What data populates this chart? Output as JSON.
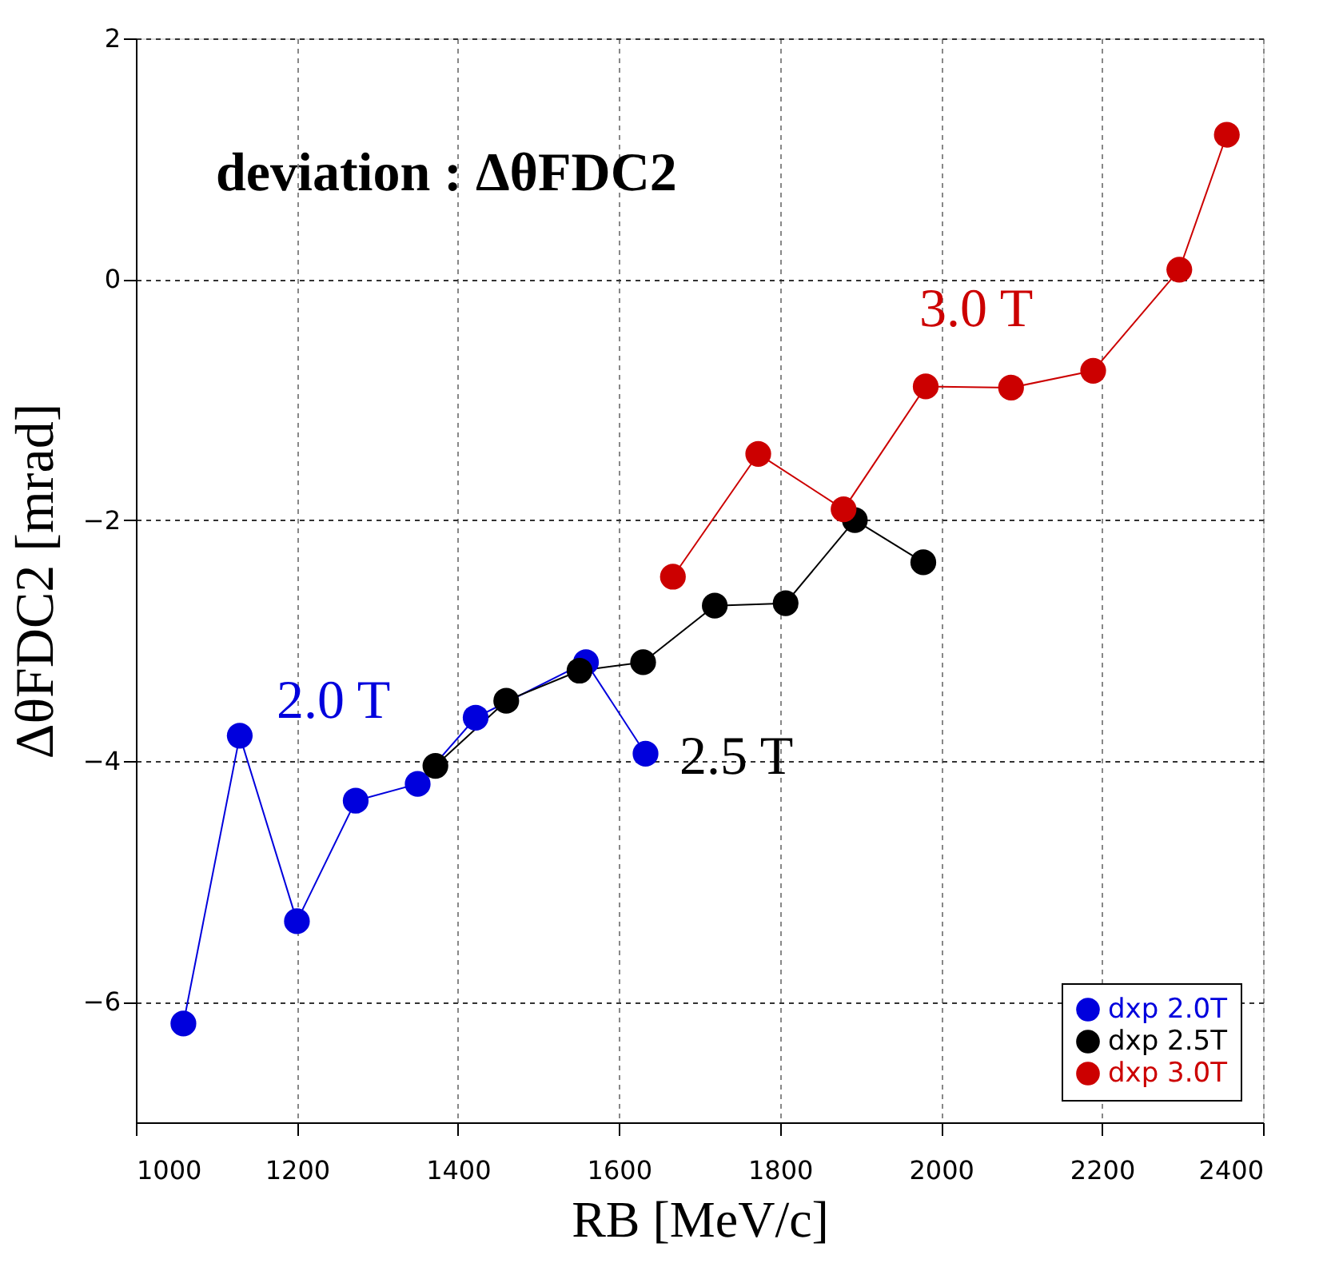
{
  "chart_data": {
    "type": "line",
    "title": "deviation : ΔθFDC2",
    "xlabel": "RB [MeV/c]",
    "ylabel": "ΔθFDC2 [mrad]",
    "xlim": [
      1000,
      2400
    ],
    "xticks": [
      1000,
      1200,
      1400,
      1600,
      1800,
      2000,
      2200,
      2400
    ],
    "ylim": [
      -7,
      2
    ],
    "yticks": [
      -6,
      -4,
      -2,
      0,
      2
    ],
    "grid": true,
    "marker": "circle",
    "line_style": "solid",
    "legend": "bottom right",
    "series": [
      {
        "name": "dxp 2.0T",
        "color": "#0000dd",
        "x": [
          1059,
          1129,
          1200,
          1273,
          1350,
          1422,
          1559,
          1633
        ],
        "values": [
          -6.18,
          -3.79,
          -5.33,
          -4.33,
          -4.19,
          -3.64,
          -3.18,
          -3.94
        ]
      },
      {
        "name": "dxp 2.5T",
        "color": "#000000",
        "x": [
          1372,
          1460,
          1551,
          1630,
          1719,
          1807,
          1893,
          1978
        ],
        "values": [
          -4.04,
          -3.5,
          -3.25,
          -3.18,
          -2.71,
          -2.69,
          -2.0,
          -2.35
        ]
      },
      {
        "name": "dxp 3.0T",
        "color": "#cc0000",
        "x": [
          1667,
          1773,
          1879,
          1981,
          2087,
          2189,
          2296,
          2355
        ],
        "values": [
          -2.47,
          -1.45,
          -1.91,
          -0.89,
          -0.9,
          -0.76,
          0.08,
          1.2
        ]
      }
    ],
    "annotations": [
      "2.0 T",
      "2.5 T",
      "3.0 T"
    ]
  }
}
